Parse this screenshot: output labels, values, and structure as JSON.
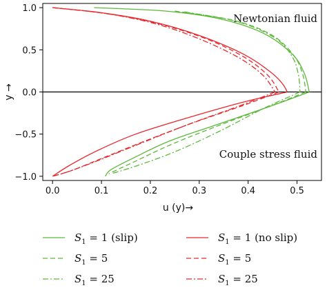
{
  "chart_data": {
    "type": "line",
    "xlabel": "u (y)→",
    "ylabel": "y →",
    "xlim": [
      -0.02,
      0.55
    ],
    "ylim": [
      -1.05,
      1.05
    ],
    "x_ticks": [
      0.0,
      0.1,
      0.2,
      0.3,
      0.4,
      0.5
    ],
    "x_tick_labels": [
      "0.0",
      "0.1",
      "0.2",
      "0.3",
      "0.4",
      "0.5"
    ],
    "y_ticks": [
      1.0,
      0.5,
      0.0,
      -0.5,
      -1.0
    ],
    "y_tick_labels": [
      "1.0",
      "0.5",
      "0.0",
      "−0.5",
      "−1.0"
    ],
    "grid": false,
    "zero_line": true,
    "annotations": [
      "Newtonian fluid",
      "Couple stress fluid"
    ],
    "legend_position": "bottom",
    "legend_symbol": "S",
    "legend_subscript": "1",
    "colors": {
      "slip": "#5cb83a",
      "no_slip": "#e8262c"
    },
    "series": [
      {
        "group": "slip",
        "legend_value": "1",
        "legend_suffix": " (slip)",
        "dash": "solid",
        "upper": [
          [
            0.085,
            1.0
          ],
          [
            0.23,
            0.96
          ],
          [
            0.34,
            0.87
          ],
          [
            0.43,
            0.7
          ],
          [
            0.49,
            0.45
          ],
          [
            0.515,
            0.22
          ],
          [
            0.525,
            0.0
          ]
        ],
        "lower": [
          [
            0.525,
            0.0
          ],
          [
            0.45,
            -0.16
          ],
          [
            0.34,
            -0.38
          ],
          [
            0.24,
            -0.58
          ],
          [
            0.17,
            -0.77
          ],
          [
            0.12,
            -0.92
          ],
          [
            0.108,
            -1.0
          ]
        ]
      },
      {
        "group": "slip",
        "legend_value": "5",
        "legend_suffix": "",
        "dash": "dash",
        "upper": [
          [
            0.25,
            0.96
          ],
          [
            0.37,
            0.85
          ],
          [
            0.45,
            0.67
          ],
          [
            0.495,
            0.42
          ],
          [
            0.512,
            0.2
          ],
          [
            0.518,
            0.0
          ]
        ],
        "lower": [
          [
            0.518,
            0.0
          ],
          [
            0.44,
            -0.18
          ],
          [
            0.33,
            -0.42
          ],
          [
            0.24,
            -0.63
          ],
          [
            0.17,
            -0.82
          ],
          [
            0.115,
            -0.97
          ]
        ]
      },
      {
        "group": "slip",
        "legend_value": "25",
        "legend_suffix": "",
        "dash": "dashdot",
        "upper": [
          [
            0.27,
            0.95
          ],
          [
            0.38,
            0.83
          ],
          [
            0.455,
            0.64
          ],
          [
            0.49,
            0.42
          ],
          [
            0.503,
            0.2
          ],
          [
            0.506,
            0.0
          ]
        ],
        "lower": [
          [
            0.506,
            0.0
          ],
          [
            0.43,
            -0.2
          ],
          [
            0.34,
            -0.47
          ],
          [
            0.25,
            -0.71
          ],
          [
            0.17,
            -0.88
          ],
          [
            0.12,
            -0.97
          ]
        ]
      },
      {
        "group": "no_slip",
        "legend_value": "1",
        "legend_suffix": " (no slip)",
        "dash": "solid",
        "upper": [
          [
            0.0,
            1.0
          ],
          [
            0.1,
            0.94
          ],
          [
            0.2,
            0.84
          ],
          [
            0.3,
            0.67
          ],
          [
            0.39,
            0.45
          ],
          [
            0.445,
            0.24
          ],
          [
            0.47,
            0.1
          ],
          [
            0.48,
            0.0
          ]
        ],
        "lower": [
          [
            0.48,
            0.0
          ],
          [
            0.39,
            -0.12
          ],
          [
            0.28,
            -0.3
          ],
          [
            0.17,
            -0.5
          ],
          [
            0.09,
            -0.7
          ],
          [
            0.035,
            -0.87
          ],
          [
            0.0,
            -1.0
          ]
        ]
      },
      {
        "group": "no_slip",
        "legend_value": "5",
        "legend_suffix": "",
        "dash": "dash",
        "upper": [
          [
            0.0,
            1.0
          ],
          [
            0.11,
            0.93
          ],
          [
            0.21,
            0.82
          ],
          [
            0.31,
            0.64
          ],
          [
            0.39,
            0.42
          ],
          [
            0.44,
            0.2
          ],
          [
            0.463,
            0.0
          ]
        ],
        "lower": [
          [
            0.463,
            0.0
          ],
          [
            0.39,
            -0.16
          ],
          [
            0.29,
            -0.36
          ],
          [
            0.19,
            -0.58
          ],
          [
            0.1,
            -0.79
          ],
          [
            0.04,
            -0.93
          ],
          [
            0.0,
            -1.0
          ]
        ]
      },
      {
        "group": "no_slip",
        "legend_value": "25",
        "legend_suffix": "",
        "dash": "dashdot",
        "upper": [
          [
            0.0,
            1.0
          ],
          [
            0.11,
            0.93
          ],
          [
            0.21,
            0.81
          ],
          [
            0.3,
            0.63
          ],
          [
            0.38,
            0.41
          ],
          [
            0.43,
            0.2
          ],
          [
            0.455,
            0.0
          ]
        ],
        "lower": [
          [
            0.455,
            0.0
          ],
          [
            0.38,
            -0.17
          ],
          [
            0.28,
            -0.38
          ],
          [
            0.18,
            -0.61
          ],
          [
            0.09,
            -0.82
          ],
          [
            0.035,
            -0.94
          ],
          [
            0.0,
            -1.0
          ]
        ]
      }
    ]
  }
}
